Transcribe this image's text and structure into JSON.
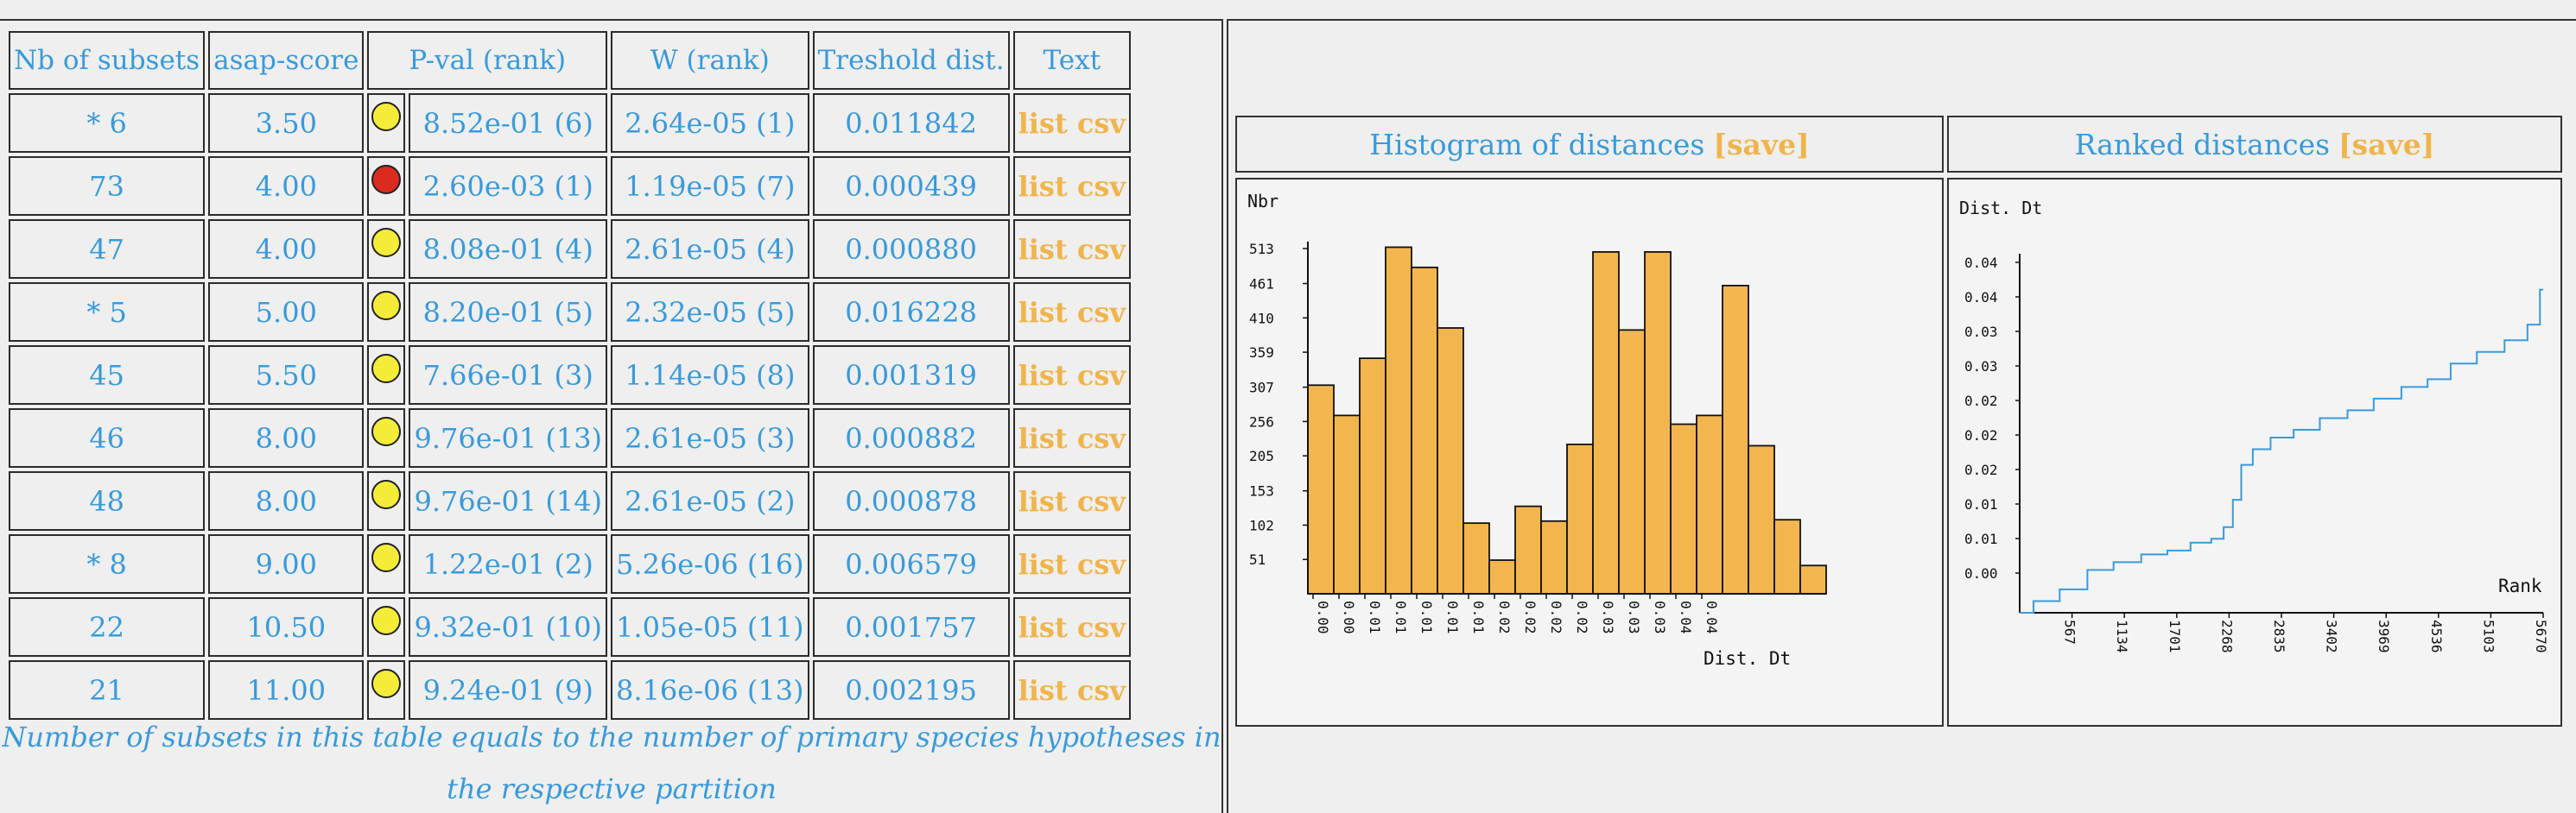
{
  "table": {
    "headers": {
      "nb": "Nb of subsets",
      "asap": "asap-score",
      "pval": "P-val (rank)",
      "w": "W (rank)",
      "tresh": "Treshold dist.",
      "text": "Text"
    },
    "rows": [
      {
        "nb": "* 6",
        "asap": "3.50",
        "dot": "#f5ec3a",
        "pval": "8.52e-01 (6)",
        "w": "2.64e-05 (1)",
        "tresh": "0.011842",
        "text": "list csv"
      },
      {
        "nb": "73",
        "asap": "4.00",
        "dot": "#dd2a1e",
        "pval": "2.60e-03 (1)",
        "w": "1.19e-05 (7)",
        "tresh": "0.000439",
        "text": "list csv"
      },
      {
        "nb": "47",
        "asap": "4.00",
        "dot": "#f5ec3a",
        "pval": "8.08e-01 (4)",
        "w": "2.61e-05 (4)",
        "tresh": "0.000880",
        "text": "list csv"
      },
      {
        "nb": "* 5",
        "asap": "5.00",
        "dot": "#f5ec3a",
        "pval": "8.20e-01 (5)",
        "w": "2.32e-05 (5)",
        "tresh": "0.016228",
        "text": "list csv"
      },
      {
        "nb": "45",
        "asap": "5.50",
        "dot": "#f5ec3a",
        "pval": "7.66e-01 (3)",
        "w": "1.14e-05 (8)",
        "tresh": "0.001319",
        "text": "list csv"
      },
      {
        "nb": "46",
        "asap": "8.00",
        "dot": "#f5ec3a",
        "pval": "9.76e-01 (13)",
        "w": "2.61e-05 (3)",
        "tresh": "0.000882",
        "text": "list csv"
      },
      {
        "nb": "48",
        "asap": "8.00",
        "dot": "#f5ec3a",
        "pval": "9.76e-01 (14)",
        "w": "2.61e-05 (2)",
        "tresh": "0.000878",
        "text": "list csv"
      },
      {
        "nb": "* 8",
        "asap": "9.00",
        "dot": "#f5ec3a",
        "pval": "1.22e-01 (2)",
        "w": "5.26e-06 (16)",
        "tresh": "0.006579",
        "text": "list csv"
      },
      {
        "nb": "22",
        "asap": "10.50",
        "dot": "#f5ec3a",
        "pval": "9.32e-01 (10)",
        "w": "1.05e-05 (11)",
        "tresh": "0.001757",
        "text": "list csv"
      },
      {
        "nb": "21",
        "asap": "11.00",
        "dot": "#f5ec3a",
        "pval": "9.24e-01 (9)",
        "w": "8.16e-06 (13)",
        "tresh": "0.002195",
        "text": "list csv"
      }
    ],
    "footnote": "Number of subsets in this table equals to the number of primary species hypotheses in the respective partition"
  },
  "colors": {
    "accent_blue": "#3a9ad9",
    "save_orange": "#f0b44d",
    "bar_fill": "#f3b64f",
    "line_blue": "#3a9ad9"
  },
  "charts": {
    "histogram_header": {
      "title": "Histogram of distances",
      "save": "[save]"
    },
    "ranked_header": {
      "title": "Ranked distances",
      "save": "[save]"
    }
  },
  "chart_data": [
    {
      "type": "bar",
      "ylabel": "Nbr",
      "xlabel": "Dist. Dt",
      "yticks": [
        51,
        102,
        153,
        205,
        256,
        307,
        359,
        410,
        461,
        513
      ],
      "ylim": [
        0,
        513
      ],
      "xtick_labels": [
        "0.00",
        "0.00",
        "0.01",
        "0.01",
        "0.01",
        "0.01",
        "0.01",
        "0.02",
        "0.02",
        "0.02",
        "0.02",
        "0.03",
        "0.03",
        "0.03",
        "0.04",
        "0.04"
      ],
      "values": [
        310,
        265,
        350,
        515,
        485,
        395,
        105,
        50,
        130,
        108,
        222,
        508,
        392,
        508,
        252,
        265,
        458,
        220,
        110,
        42
      ],
      "grid": false
    },
    {
      "type": "line",
      "ylabel": "Dist. Dt",
      "xlabel": "Rank",
      "ytick_labels": [
        "0.00",
        "0.01",
        "0.01",
        "0.02",
        "0.02",
        "0.02",
        "0.03",
        "0.03",
        "0.04",
        "0.04"
      ],
      "xticks": [
        567,
        1134,
        1701,
        2268,
        2835,
        3402,
        3969,
        4536,
        5103,
        5670
      ],
      "xlim": [
        0,
        5670
      ],
      "ylim": [
        0,
        0.045
      ],
      "x": [
        0,
        300,
        567,
        900,
        1134,
        1500,
        1701,
        2000,
        2150,
        2268,
        2350,
        2450,
        2600,
        2835,
        3100,
        3402,
        3700,
        3969,
        4300,
        4536,
        4800,
        5103,
        5400,
        5600,
        5670
      ],
      "y": [
        0.0,
        0.0015,
        0.003,
        0.0055,
        0.0065,
        0.0075,
        0.008,
        0.009,
        0.0095,
        0.011,
        0.0145,
        0.019,
        0.021,
        0.0225,
        0.0235,
        0.025,
        0.026,
        0.0275,
        0.029,
        0.03,
        0.032,
        0.0335,
        0.035,
        0.037,
        0.0415
      ],
      "grid": false
    }
  ]
}
